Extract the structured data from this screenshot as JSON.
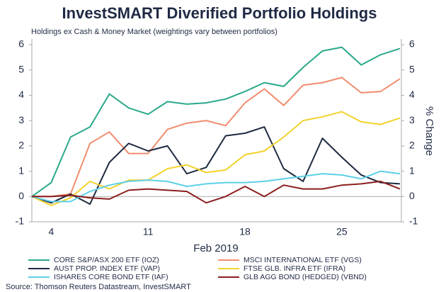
{
  "chart_data": {
    "type": "line",
    "title": "InvestSMART Diverified Portfolio Holdings",
    "subtitle": "Holdings ex Cash & Money Market (weightings vary between portfolios)",
    "x_label": "Feb 2019",
    "y2_label": "% Change",
    "source": "Source: Thomson Reuters Datastream, InvestSMART",
    "categories": [
      null,
      "4",
      null,
      null,
      null,
      null,
      "11",
      null,
      null,
      null,
      null,
      "18",
      null,
      null,
      null,
      null,
      "25",
      null,
      null,
      null
    ],
    "ylim": [
      -1,
      6
    ],
    "yticks": [
      -1,
      0,
      1,
      2,
      3,
      4,
      5,
      6
    ],
    "y2lim": [
      -1,
      6
    ],
    "y2ticks": [
      -1,
      0,
      1,
      2,
      3,
      4,
      5,
      6
    ],
    "grid": false,
    "series": [
      {
        "name": "CORE S&P/ASX 200 ETF (IOZ)",
        "color": "#2aa88a",
        "values": [
          0,
          0.55,
          2.35,
          2.75,
          4.05,
          3.5,
          3.25,
          3.75,
          3.65,
          3.7,
          3.85,
          4.15,
          4.5,
          4.35,
          5.1,
          5.75,
          5.9,
          5.2,
          5.6,
          5.85
        ]
      },
      {
        "name": "MSCI INTERNATIONAL ETF (VGS)",
        "color": "#f08c6e",
        "values": [
          0,
          0,
          0.1,
          2.1,
          2.55,
          1.7,
          1.7,
          2.65,
          2.9,
          3.0,
          2.8,
          3.7,
          4.25,
          3.6,
          4.4,
          4.5,
          4.7,
          4.1,
          4.15,
          4.65
        ]
      },
      {
        "name": "AUST PROP. INDEX ETF (VAP)",
        "color": "#1e2a40",
        "values": [
          0,
          -0.25,
          0.1,
          -0.3,
          1.35,
          2.1,
          1.8,
          2.0,
          0.9,
          1.15,
          2.4,
          2.5,
          2.75,
          1.1,
          0.6,
          2.3,
          1.55,
          0.85,
          0.55,
          0.5
        ]
      },
      {
        "name": "FTSE GLB. INFRA ETF (IFRA)",
        "color": "#f2d22e",
        "values": [
          0,
          -0.35,
          -0.05,
          0.6,
          0.3,
          0.65,
          0.65,
          1.1,
          1.25,
          0.95,
          1.05,
          1.65,
          1.8,
          2.35,
          3.0,
          3.15,
          3.35,
          2.95,
          2.85,
          3.1
        ]
      },
      {
        "name": "ISHARES CORE BOND ETF (IAF)",
        "color": "#5ed0e8",
        "values": [
          0,
          -0.2,
          -0.2,
          0.2,
          0.45,
          0.6,
          0.65,
          0.6,
          0.4,
          0.5,
          0.55,
          0.55,
          0.6,
          0.7,
          0.8,
          0.9,
          0.85,
          0.7,
          1.0,
          0.9
        ]
      },
      {
        "name": "GLB AGG BOND (HEDGED) (VBND)",
        "color": "#8b1e1e",
        "values": [
          0,
          0,
          0.05,
          -0.05,
          -0.1,
          0.25,
          0.3,
          0.25,
          0.2,
          -0.25,
          0.0,
          0.4,
          0.0,
          0.45,
          0.3,
          0.3,
          0.45,
          0.5,
          0.6,
          0.3
        ]
      }
    ]
  }
}
